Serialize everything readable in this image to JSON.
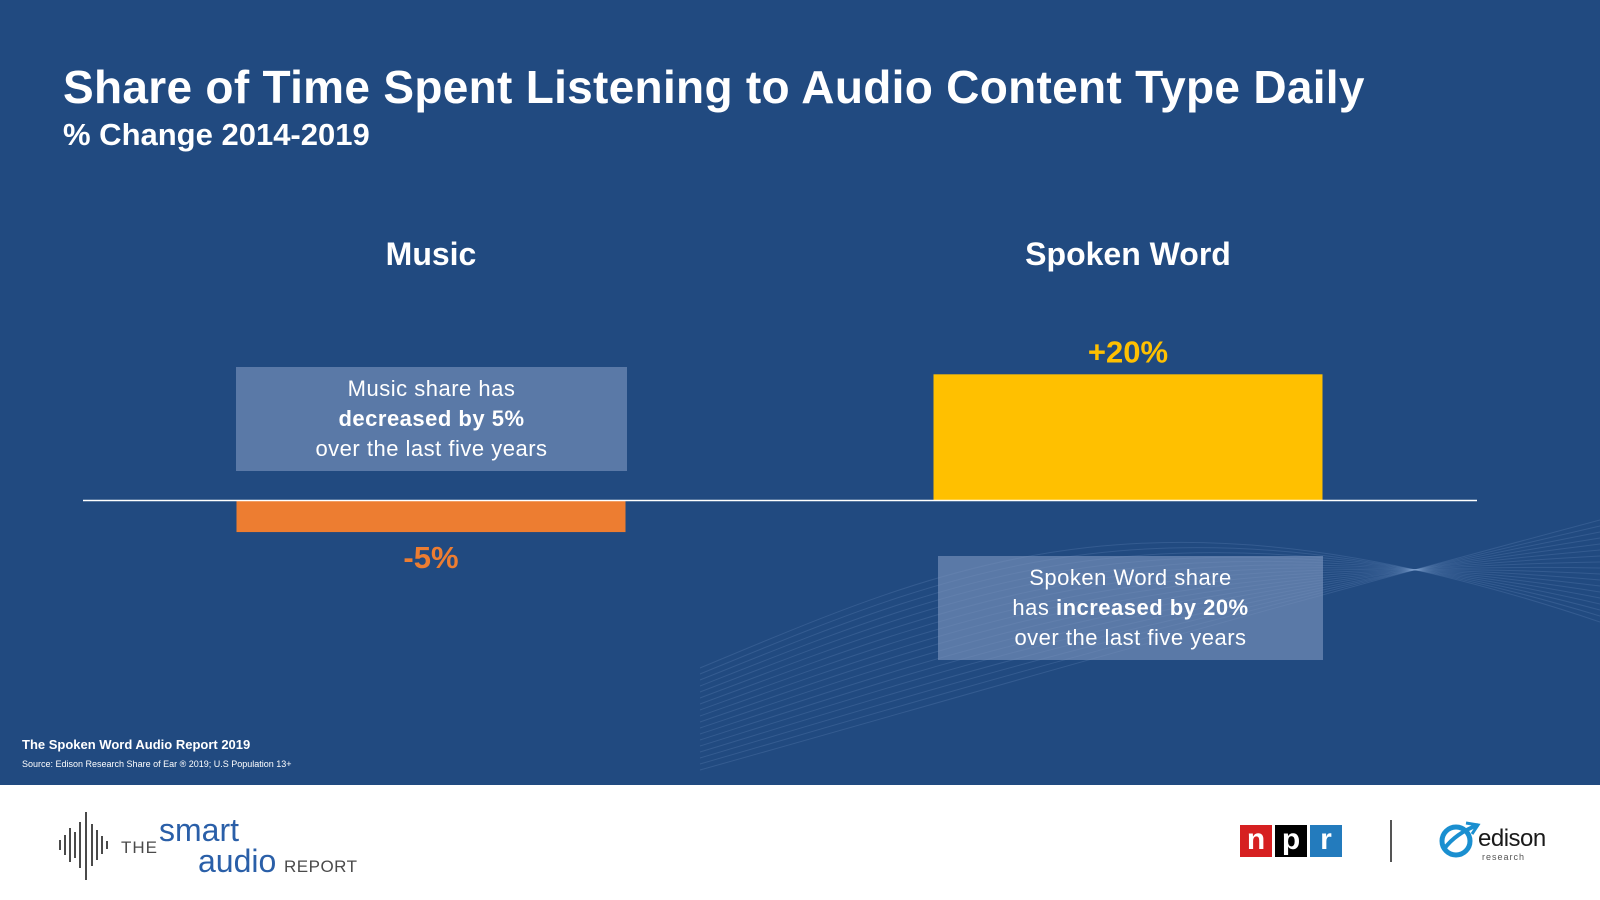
{
  "title": "Share of Time Spent Listening to Audio Content Type Daily",
  "subtitle": "% Change 2014-2019",
  "colors": {
    "background": "#214a80",
    "negative": "#ed7d31",
    "positive": "#ffc000",
    "callout": "#7e96be"
  },
  "chart_data": {
    "type": "bar",
    "categories": [
      "Music",
      "Spoken Word"
    ],
    "values": [
      -5,
      20
    ],
    "data_labels": [
      "-5%",
      "+20%"
    ],
    "bar_colors": [
      "#ed7d31",
      "#ffc000"
    ],
    "ylim": [
      -8,
      21
    ],
    "title": "Share of Time Spent Listening to Audio Content Type Daily",
    "xlabel": "",
    "ylabel": "% Change 2014-2019",
    "grid": false
  },
  "callouts": {
    "music": {
      "pre": "Music share has",
      "bold": "decreased by 5%",
      "post": "over the last five years"
    },
    "spoken": {
      "line1": "Spoken Word share",
      "line2_pre": "has ",
      "line2_bold": "increased by 20%",
      "line3": "over the last five years"
    }
  },
  "footnote": {
    "report": "The Spoken Word Audio Report 2019",
    "source": "Source: Edison Research Share of Ear ® 2019; U.S Population 13+"
  },
  "footer": {
    "smart_the": "THE",
    "smart_smart": "smart",
    "smart_audio": "audio",
    "smart_report": "REPORT",
    "npr_letters": [
      "n",
      "p",
      "r"
    ],
    "npr_colors": [
      "#d62021",
      "#000000",
      "#237bbd"
    ],
    "edison": "edison",
    "edison_sub": "research"
  }
}
